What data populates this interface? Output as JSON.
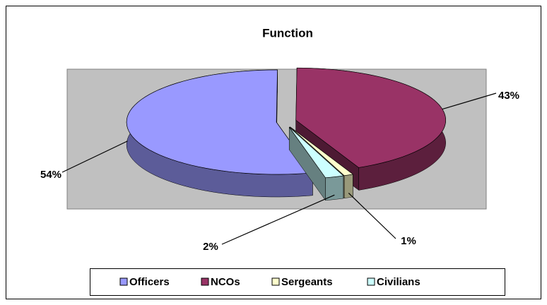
{
  "chart_data": {
    "type": "pie3d",
    "title": "Function",
    "categories": [
      "Officers",
      "NCOs",
      "Sergeants",
      "Civilians"
    ],
    "values": [
      54,
      43,
      1,
      2
    ],
    "value_labels": [
      "54%",
      "43%",
      "1%",
      "2%"
    ],
    "colors": [
      "#9999ff",
      "#993366",
      "#ffffcc",
      "#ccffff"
    ],
    "legend": "bottom"
  }
}
